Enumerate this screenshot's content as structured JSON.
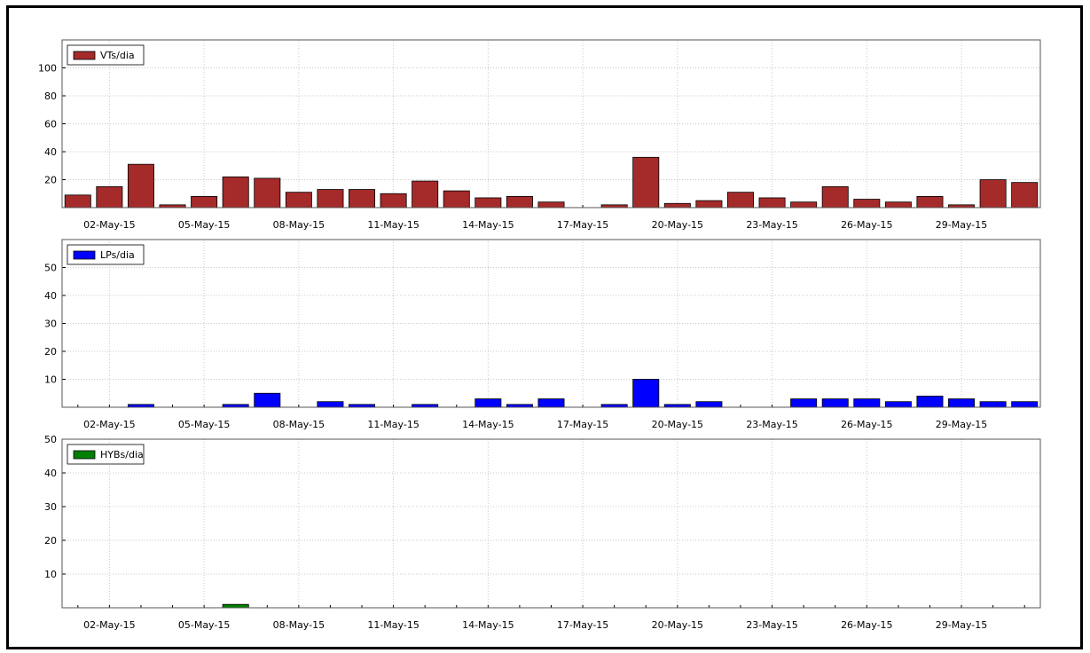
{
  "chart_data": [
    {
      "type": "bar",
      "name": "VTs/dia",
      "color": "#a52a2a",
      "ylim": [
        0,
        120
      ],
      "yticks": [
        20,
        40,
        60,
        80,
        100
      ],
      "x": [
        "01-May-15",
        "02-May-15",
        "03-May-15",
        "04-May-15",
        "05-May-15",
        "06-May-15",
        "07-May-15",
        "08-May-15",
        "09-May-15",
        "10-May-15",
        "11-May-15",
        "12-May-15",
        "13-May-15",
        "14-May-15",
        "15-May-15",
        "16-May-15",
        "17-May-15",
        "18-May-15",
        "19-May-15",
        "20-May-15",
        "21-May-15",
        "22-May-15",
        "23-May-15",
        "24-May-15",
        "25-May-15",
        "26-May-15",
        "27-May-15",
        "28-May-15",
        "29-May-15",
        "30-May-15",
        "31-May-15"
      ],
      "values": [
        9,
        15,
        31,
        2,
        8,
        22,
        21,
        11,
        13,
        13,
        10,
        19,
        12,
        7,
        8,
        4,
        0,
        2,
        36,
        3,
        5,
        11,
        7,
        4,
        15,
        6,
        4,
        8,
        2,
        20,
        18
      ],
      "xtick_labels": [
        "02-May-15",
        "05-May-15",
        "08-May-15",
        "11-May-15",
        "14-May-15",
        "17-May-15",
        "20-May-15",
        "23-May-15",
        "26-May-15",
        "29-May-15"
      ],
      "legend": "top-left",
      "grid": true
    },
    {
      "type": "bar",
      "name": "LPs/dia",
      "color": "#0000ff",
      "ylim": [
        0,
        60
      ],
      "yticks": [
        10,
        20,
        30,
        40,
        50
      ],
      "x": [
        "01-May-15",
        "02-May-15",
        "03-May-15",
        "04-May-15",
        "05-May-15",
        "06-May-15",
        "07-May-15",
        "08-May-15",
        "09-May-15",
        "10-May-15",
        "11-May-15",
        "12-May-15",
        "13-May-15",
        "14-May-15",
        "15-May-15",
        "16-May-15",
        "17-May-15",
        "18-May-15",
        "19-May-15",
        "20-May-15",
        "21-May-15",
        "22-May-15",
        "23-May-15",
        "24-May-15",
        "25-May-15",
        "26-May-15",
        "27-May-15",
        "28-May-15",
        "29-May-15",
        "30-May-15",
        "31-May-15"
      ],
      "values": [
        0,
        0,
        1,
        0,
        0,
        1,
        5,
        0,
        2,
        1,
        0,
        1,
        0,
        3,
        1,
        3,
        0,
        1,
        10,
        1,
        2,
        0,
        0,
        3,
        3,
        3,
        2,
        4,
        3,
        2,
        2
      ],
      "xtick_labels": [
        "02-May-15",
        "05-May-15",
        "08-May-15",
        "11-May-15",
        "14-May-15",
        "17-May-15",
        "20-May-15",
        "23-May-15",
        "26-May-15",
        "29-May-15"
      ],
      "legend": "top-left",
      "grid": true
    },
    {
      "type": "bar",
      "name": "HYBs/dia",
      "color": "#008000",
      "ylim": [
        0,
        50
      ],
      "yticks": [
        10,
        20,
        30,
        40,
        50
      ],
      "x": [
        "01-May-15",
        "02-May-15",
        "03-May-15",
        "04-May-15",
        "05-May-15",
        "06-May-15",
        "07-May-15",
        "08-May-15",
        "09-May-15",
        "10-May-15",
        "11-May-15",
        "12-May-15",
        "13-May-15",
        "14-May-15",
        "15-May-15",
        "16-May-15",
        "17-May-15",
        "18-May-15",
        "19-May-15",
        "20-May-15",
        "21-May-15",
        "22-May-15",
        "23-May-15",
        "24-May-15",
        "25-May-15",
        "26-May-15",
        "27-May-15",
        "28-May-15",
        "29-May-15",
        "30-May-15",
        "31-May-15"
      ],
      "values": [
        0,
        0,
        0,
        0,
        0,
        1,
        0,
        0,
        0,
        0,
        0,
        0,
        0,
        0,
        0,
        0,
        0,
        0,
        0,
        0,
        0,
        0,
        0,
        0,
        0,
        0,
        0,
        0,
        0,
        0,
        0
      ],
      "xtick_labels": [
        "02-May-15",
        "05-May-15",
        "08-May-15",
        "11-May-15",
        "14-May-15",
        "17-May-15",
        "20-May-15",
        "23-May-15",
        "26-May-15",
        "29-May-15"
      ],
      "legend": "top-left",
      "grid": true
    }
  ]
}
